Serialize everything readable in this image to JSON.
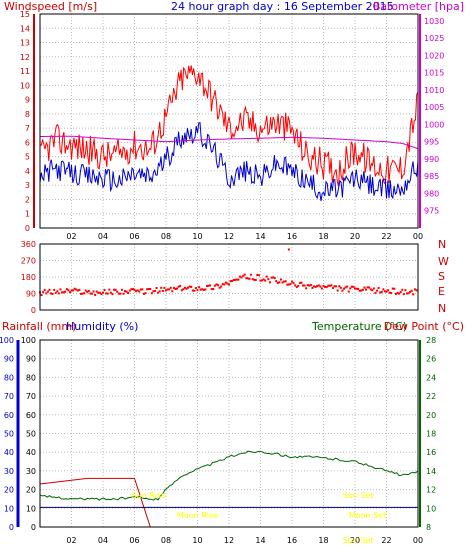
{
  "header": {
    "windspeed_label": "Windspeed [m/s]",
    "title": "24 hour graph day : 16 September 2015",
    "barometer_label": "Barometer [hpa]"
  },
  "bottom_header": {
    "rainfall_label": "Rainfall (mm)",
    "humidity_label": "Humidity (%)",
    "temperature_label": "Temperature (°C)",
    "dewpoint_label": "Dew Point (°C)"
  },
  "colors": {
    "windspeed": "#ff0000",
    "gust": "#ff0000",
    "avg_wind": "#0000cc",
    "barometer": "#cc00cc",
    "direction": "#ff0000",
    "rainfall": "#cc0000",
    "humidity": "#0000cc",
    "temperature": "#006600",
    "dewpoint": "#cc0000",
    "sun_moon": "#ffff00",
    "grid": "#bbbbbb"
  },
  "chart_data": [
    {
      "type": "line",
      "id": "wind_baro",
      "x_ticks": [
        "02",
        "04",
        "06",
        "08",
        "10",
        "12",
        "14",
        "16",
        "18",
        "20",
        "22",
        "00"
      ],
      "y_left": {
        "label": "Windspeed [m/s]",
        "range": [
          0,
          15
        ],
        "ticks": [
          0,
          1,
          2,
          3,
          4,
          5,
          6,
          7,
          8,
          9,
          10,
          11,
          12,
          13,
          14,
          15
        ]
      },
      "y_right": {
        "label": "Barometer [hpa]",
        "range": [
          970,
          1032
        ],
        "ticks": [
          975,
          980,
          985,
          990,
          995,
          1000,
          1005,
          1010,
          1015,
          1020,
          1025,
          1030
        ]
      },
      "series": [
        {
          "name": "gust",
          "axis": "left",
          "x": [
            0,
            1,
            2,
            3,
            4,
            5,
            6,
            7,
            8,
            9,
            10,
            11,
            12,
            13,
            14,
            15,
            16,
            17,
            18,
            19,
            20,
            21,
            22,
            23,
            24
          ],
          "values": [
            5.0,
            6.2,
            5.8,
            5.5,
            5.0,
            5.2,
            5.8,
            5.5,
            7.8,
            10.5,
            11.0,
            9.0,
            7.0,
            7.5,
            7.0,
            7.4,
            6.8,
            5.0,
            4.5,
            4.0,
            5.5,
            4.5,
            4.0,
            4.2,
            8.8
          ]
        },
        {
          "name": "average",
          "axis": "left",
          "x": [
            0,
            1,
            2,
            3,
            4,
            5,
            6,
            7,
            8,
            9,
            10,
            11,
            12,
            13,
            14,
            15,
            16,
            17,
            18,
            19,
            20,
            21,
            22,
            23,
            24
          ],
          "values": [
            3.5,
            4.2,
            3.8,
            3.6,
            3.5,
            3.3,
            3.8,
            3.5,
            4.8,
            6.5,
            6.8,
            5.5,
            3.5,
            4.0,
            3.5,
            4.5,
            4.0,
            3.2,
            2.5,
            2.8,
            3.5,
            3.0,
            2.6,
            2.8,
            4.5
          ]
        },
        {
          "name": "barometer",
          "axis": "right",
          "x": [
            0,
            2,
            4,
            6,
            8,
            10,
            12,
            14,
            16,
            18,
            20,
            22,
            23,
            24
          ],
          "values": [
            996.5,
            996.6,
            996.0,
            995.5,
            995.0,
            995.5,
            995.8,
            996.0,
            996.3,
            996.0,
            995.5,
            995.0,
            994.5,
            993.0
          ]
        }
      ]
    },
    {
      "type": "scatter",
      "id": "wind_direction",
      "y_range": [
        0,
        360
      ],
      "y_ticks": [
        0,
        90,
        180,
        270,
        360
      ],
      "compass_labels": [
        "N",
        "W",
        "S",
        "E",
        "N"
      ],
      "series": [
        {
          "name": "direction",
          "x": [
            0,
            1,
            2,
            3,
            4,
            5,
            6,
            7,
            8,
            9,
            10,
            11,
            12,
            13,
            14,
            15,
            16,
            17,
            18,
            19,
            20,
            21,
            22,
            23,
            24
          ],
          "values": [
            95,
            100,
            105,
            98,
            96,
            102,
            100,
            104,
            110,
            118,
            120,
            125,
            150,
            180,
            175,
            160,
            140,
            132,
            125,
            118,
            112,
            108,
            105,
            100,
            98
          ]
        },
        {
          "name": "outlier",
          "x": [
            15.8
          ],
          "values": [
            330
          ]
        }
      ]
    },
    {
      "type": "line",
      "id": "rain_hum_temp",
      "x_ticks": [
        "02",
        "04",
        "06",
        "08",
        "10",
        "12",
        "14",
        "16",
        "18",
        "20",
        "22",
        "00"
      ],
      "y_left": {
        "labels": [
          "Rainfall (mm)",
          "Humidity (%)"
        ],
        "range": [
          0,
          100
        ],
        "ticks": [
          0,
          10,
          20,
          30,
          40,
          50,
          60,
          70,
          80,
          90,
          100
        ]
      },
      "y_right": {
        "labels": [
          "Temperature (°C)",
          "Dew Point (°C)"
        ],
        "range": [
          8,
          28
        ],
        "ticks": [
          8,
          10,
          12,
          14,
          16,
          18,
          20,
          22,
          24,
          26,
          28
        ]
      },
      "series": [
        {
          "name": "humidity",
          "axis": "left",
          "x": [
            0,
            1,
            2,
            3,
            4,
            5,
            6,
            7,
            8,
            9,
            10,
            11,
            12,
            13,
            14,
            15,
            16,
            17,
            18,
            19,
            20,
            21,
            22,
            23,
            24
          ],
          "values": [
            23,
            24,
            25,
            26,
            26,
            26,
            26,
            0,
            0,
            0,
            0,
            0,
            0,
            0,
            0,
            0,
            0,
            0,
            0,
            0,
            0,
            0,
            0,
            0,
            0
          ]
        },
        {
          "name": "temperature",
          "axis": "right",
          "x": [
            0,
            1,
            2,
            3,
            4,
            5,
            6,
            7,
            7.5,
            8,
            9,
            10,
            11,
            12,
            13,
            14,
            15,
            16,
            17,
            18,
            19,
            20,
            21,
            22,
            23,
            24
          ],
          "values": [
            11.3,
            11.2,
            11.0,
            11.0,
            11.0,
            11.0,
            11.2,
            11.0,
            11.0,
            12.0,
            13.5,
            14.2,
            14.8,
            15.5,
            16.0,
            16.1,
            15.8,
            15.5,
            15.5,
            15.4,
            15.2,
            15.0,
            14.5,
            14.0,
            13.5,
            13.9
          ]
        },
        {
          "name": "dewpoint",
          "axis": "right",
          "x": [
            0,
            24
          ],
          "values": [
            10.1,
            10.1
          ]
        }
      ],
      "annotations": [
        {
          "text": "Sun Rise",
          "x": 6.9
        },
        {
          "text": "Moon Rise",
          "x": 10.0
        },
        {
          "text": "Sun Set",
          "x": 20.2
        },
        {
          "text": "Moon Set",
          "x": 20.8
        },
        {
          "text": "Sun Set",
          "x": 20.2,
          "row": "bottom"
        }
      ]
    }
  ]
}
